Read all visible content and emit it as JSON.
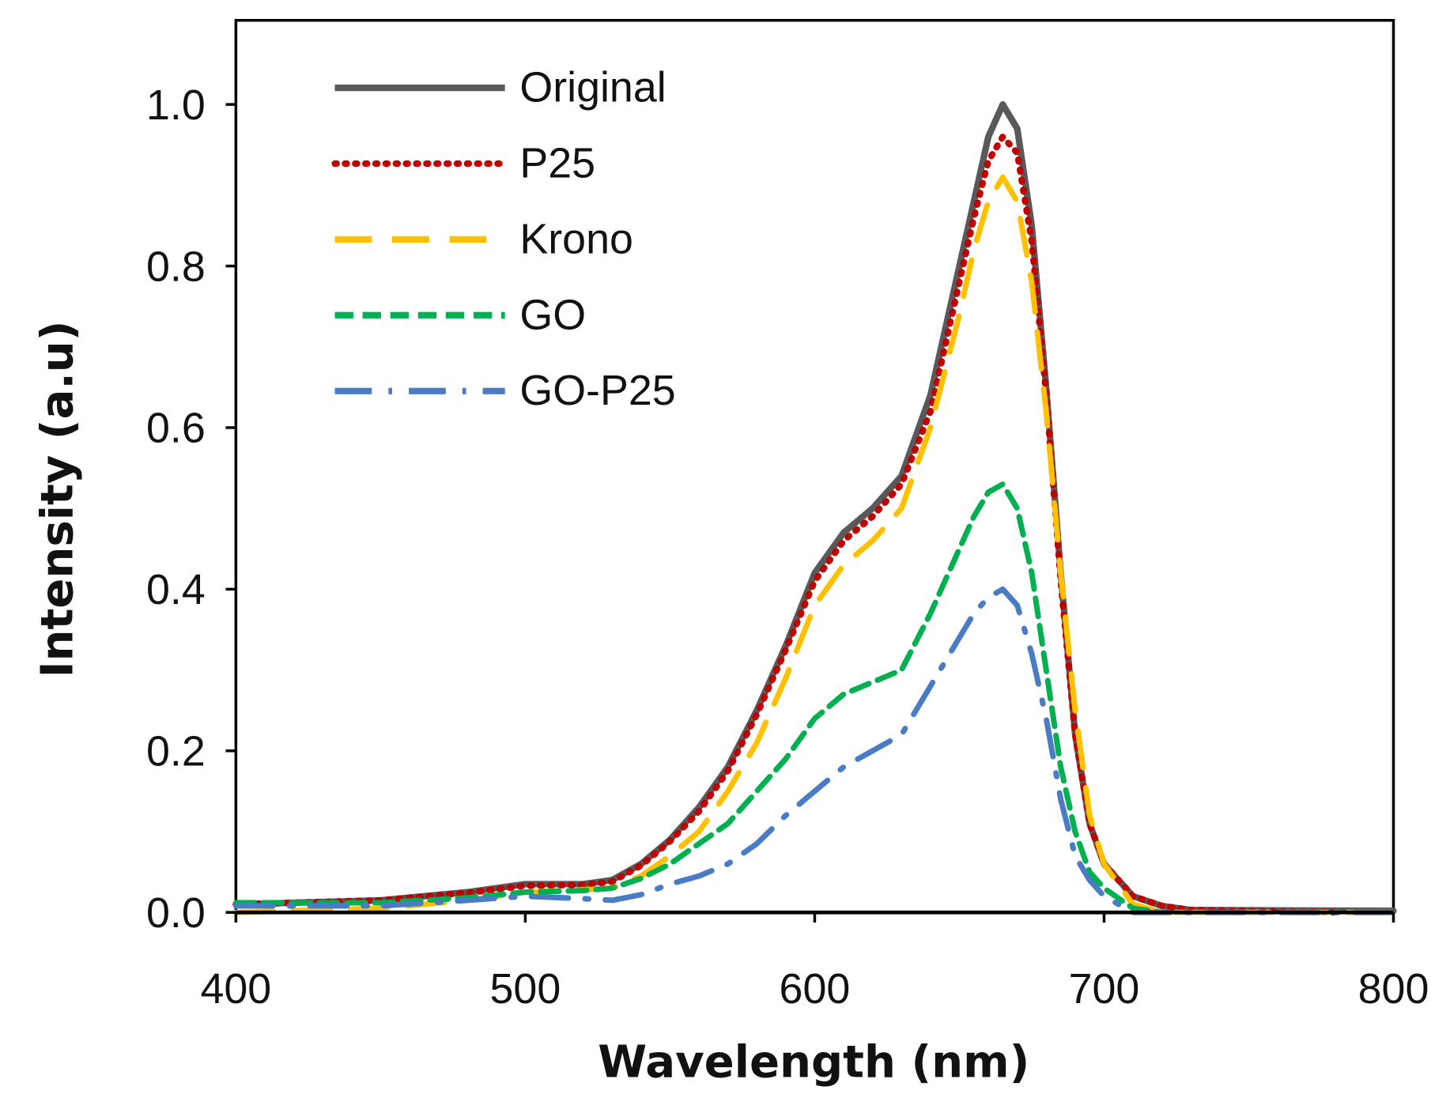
{
  "chart_data": {
    "type": "line",
    "title": "",
    "xlabel": "Wavelength (nm)",
    "ylabel": "Intensity (a.u)",
    "xlim": [
      400,
      800
    ],
    "ylim": [
      0,
      1.1
    ],
    "xticks": [
      400,
      500,
      600,
      700,
      800
    ],
    "xtick_labels": [
      "400",
      "500",
      "600",
      "700",
      "800"
    ],
    "yticks": [
      0,
      0.2,
      0.4,
      0.6,
      0.8,
      1.0
    ],
    "ytick_labels": [
      "0.0",
      "0.2",
      "0.4",
      "0.6",
      "0.8",
      "1.0"
    ],
    "grid": false,
    "legend_position": "top-left",
    "series": [
      {
        "name": "Original",
        "color": "#595959",
        "style": "solid",
        "x": [
          400,
          450,
          480,
          500,
          520,
          530,
          540,
          550,
          560,
          570,
          580,
          590,
          600,
          610,
          620,
          630,
          640,
          650,
          655,
          660,
          665,
          670,
          675,
          680,
          685,
          690,
          695,
          700,
          710,
          720,
          730,
          800
        ],
        "y": [
          0.01,
          0.015,
          0.025,
          0.035,
          0.035,
          0.04,
          0.06,
          0.09,
          0.13,
          0.18,
          0.25,
          0.33,
          0.42,
          0.47,
          0.5,
          0.54,
          0.64,
          0.8,
          0.88,
          0.96,
          1.0,
          0.97,
          0.85,
          0.65,
          0.42,
          0.22,
          0.11,
          0.06,
          0.02,
          0.008,
          0.003,
          0.002
        ]
      },
      {
        "name": "P25",
        "color": "#c00000",
        "style": "dotted",
        "x": [
          400,
          450,
          480,
          500,
          520,
          530,
          540,
          550,
          560,
          570,
          580,
          590,
          600,
          610,
          620,
          630,
          640,
          650,
          655,
          660,
          665,
          670,
          675,
          680,
          685,
          690,
          695,
          700,
          710,
          720,
          730,
          780
        ],
        "y": [
          0.01,
          0.015,
          0.024,
          0.033,
          0.034,
          0.038,
          0.058,
          0.088,
          0.125,
          0.175,
          0.245,
          0.325,
          0.41,
          0.46,
          0.49,
          0.53,
          0.62,
          0.78,
          0.86,
          0.93,
          0.96,
          0.94,
          0.83,
          0.64,
          0.41,
          0.22,
          0.11,
          0.06,
          0.02,
          0.008,
          0.003,
          0.0
        ]
      },
      {
        "name": "Krono",
        "color": "#ffc000",
        "style": "long-dash",
        "x": [
          400,
          450,
          480,
          500,
          520,
          530,
          540,
          550,
          560,
          570,
          580,
          590,
          600,
          610,
          620,
          630,
          640,
          650,
          655,
          660,
          665,
          670,
          675,
          680,
          685,
          690,
          695,
          700,
          710,
          720,
          730,
          800
        ],
        "y": [
          0.0,
          0.005,
          0.015,
          0.025,
          0.028,
          0.03,
          0.045,
          0.07,
          0.1,
          0.15,
          0.21,
          0.29,
          0.38,
          0.43,
          0.46,
          0.5,
          0.6,
          0.74,
          0.82,
          0.88,
          0.91,
          0.88,
          0.78,
          0.62,
          0.42,
          0.25,
          0.12,
          0.06,
          0.01,
          0.0,
          0.0,
          0.0
        ]
      },
      {
        "name": "GO",
        "color": "#00b050",
        "style": "dashed",
        "x": [
          400,
          450,
          480,
          500,
          520,
          530,
          540,
          550,
          560,
          570,
          580,
          590,
          600,
          610,
          620,
          630,
          640,
          650,
          655,
          660,
          665,
          670,
          675,
          680,
          685,
          690,
          695,
          700,
          710,
          720
        ],
        "y": [
          0.012,
          0.012,
          0.018,
          0.025,
          0.027,
          0.03,
          0.042,
          0.06,
          0.085,
          0.11,
          0.15,
          0.19,
          0.24,
          0.27,
          0.285,
          0.3,
          0.37,
          0.45,
          0.49,
          0.52,
          0.53,
          0.5,
          0.42,
          0.3,
          0.18,
          0.1,
          0.05,
          0.03,
          0.005,
          0.0
        ]
      },
      {
        "name": "GO-P25",
        "color": "#4a7cc4",
        "style": "dash-dot",
        "x": [
          400,
          450,
          480,
          500,
          520,
          530,
          540,
          550,
          560,
          570,
          580,
          590,
          600,
          610,
          620,
          630,
          640,
          650,
          655,
          660,
          665,
          670,
          675,
          680,
          685,
          690,
          695,
          700,
          710,
          720,
          730,
          800
        ],
        "y": [
          0.008,
          0.008,
          0.015,
          0.02,
          0.017,
          0.015,
          0.022,
          0.035,
          0.045,
          0.06,
          0.085,
          0.12,
          0.15,
          0.18,
          0.2,
          0.22,
          0.28,
          0.34,
          0.37,
          0.39,
          0.4,
          0.38,
          0.32,
          0.24,
          0.14,
          0.07,
          0.04,
          0.02,
          0.0,
          0.0,
          0.0,
          0.0
        ]
      }
    ]
  }
}
